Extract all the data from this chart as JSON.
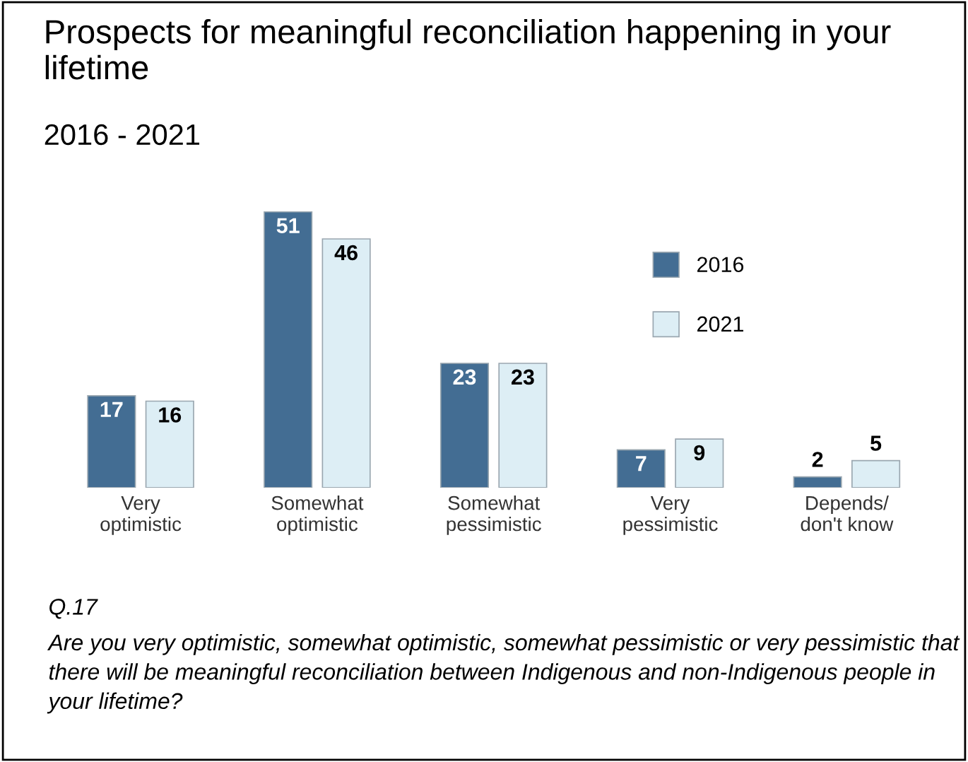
{
  "chart_data": {
    "type": "bar",
    "title": "Prospects for meaningful reconciliation happening in your lifetime",
    "subtitle": "2016 - 2021",
    "categories": [
      "Very\noptimistic",
      "Somewhat\noptimistic",
      "Somewhat\npessimistic",
      "Very\npessimistic",
      "Depends/\ndon't know"
    ],
    "series": [
      {
        "name": "2016",
        "color": "#436d93",
        "values": [
          17,
          51,
          23,
          7,
          2
        ]
      },
      {
        "name": "2021",
        "color": "#ddeef5",
        "values": [
          16,
          46,
          23,
          9,
          5
        ]
      }
    ],
    "data_labels": true,
    "legend": "top right",
    "grid": false,
    "annotations": [
      "Q.17",
      "Are you very optimistic, somewhat optimistic, somewhat pessimistic or very pessimistic that there will be meaningful reconciliation between Indigenous and non-Indigenous people in your lifetime?"
    ]
  }
}
